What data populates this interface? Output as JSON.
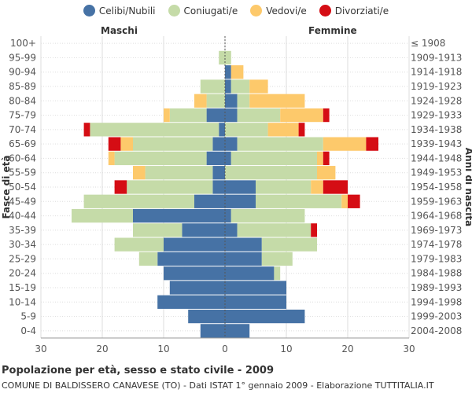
{
  "colors": {
    "celibi": "#4672a5",
    "coniugati": "#c5dba8",
    "vedovi": "#fdc96b",
    "divorziati": "#d50d14",
    "grid": "#dddddd",
    "axis": "#999999",
    "text": "#555555"
  },
  "legend": [
    {
      "label": "Celibi/Nubili",
      "color": "#4672a5"
    },
    {
      "label": "Coniugati/e",
      "color": "#c5dba8"
    },
    {
      "label": "Vedovi/e",
      "color": "#fdc96b"
    },
    {
      "label": "Divorziati/e",
      "color": "#d50d14"
    }
  ],
  "header": {
    "left": "Maschi",
    "right": "Femmine"
  },
  "footer": {
    "title": "Popolazione per età, sesso e stato civile - 2009",
    "subtitle": "COMUNE DI BALDISSERO CANAVESE (TO) - Dati ISTAT 1° gennaio 2009 - Elaborazione TUTTITALIA.IT"
  },
  "chart_data": {
    "type": "bar",
    "orientation": "horizontal-pyramid",
    "ylabel": "Fasce di età",
    "ylabel_right": "Anni di nascita",
    "xlim": [
      -30,
      30
    ],
    "xticks": [
      -30,
      -20,
      -10,
      0,
      10,
      20,
      30
    ],
    "xtick_labels": [
      "30",
      "20",
      "10",
      "0",
      "10",
      "20",
      "30"
    ],
    "categories": [
      "100+",
      "95-99",
      "90-94",
      "85-89",
      "80-84",
      "75-79",
      "70-74",
      "65-69",
      "60-64",
      "55-59",
      "50-54",
      "45-49",
      "40-44",
      "35-39",
      "30-34",
      "25-29",
      "20-24",
      "15-19",
      "10-14",
      "5-9",
      "0-4"
    ],
    "birth_years": [
      "≤ 1908",
      "1909-1913",
      "1914-1918",
      "1919-1923",
      "1924-1928",
      "1929-1933",
      "1934-1938",
      "1939-1943",
      "1944-1948",
      "1949-1953",
      "1954-1958",
      "1959-1963",
      "1964-1968",
      "1969-1973",
      "1974-1978",
      "1979-1983",
      "1984-1988",
      "1989-1993",
      "1994-1998",
      "1999-2003",
      "2004-2008"
    ],
    "series_order": [
      "celibi",
      "coniugati",
      "vedovi",
      "divorziati"
    ],
    "males": {
      "celibi": [
        0,
        0,
        0,
        0,
        0,
        3,
        1,
        2,
        3,
        2,
        2,
        5,
        15,
        7,
        10,
        11,
        10,
        9,
        11,
        6,
        4
      ],
      "coniugati": [
        0,
        1,
        0,
        4,
        3,
        6,
        21,
        13,
        15,
        11,
        14,
        18,
        10,
        8,
        8,
        3,
        0,
        0,
        0,
        0,
        0
      ],
      "vedovi": [
        0,
        0,
        0,
        0,
        2,
        1,
        0,
        2,
        1,
        2,
        0,
        0,
        0,
        0,
        0,
        0,
        0,
        0,
        0,
        0,
        0
      ],
      "divorziati": [
        0,
        0,
        0,
        0,
        0,
        0,
        1,
        2,
        0,
        0,
        2,
        0,
        0,
        0,
        0,
        0,
        0,
        0,
        0,
        0,
        0
      ]
    },
    "females": {
      "nubili": [
        0,
        0,
        1,
        1,
        2,
        2,
        0,
        2,
        1,
        0,
        5,
        5,
        1,
        2,
        6,
        6,
        8,
        10,
        10,
        13,
        4
      ],
      "coniugate": [
        0,
        1,
        0,
        3,
        2,
        7,
        7,
        14,
        14,
        15,
        9,
        14,
        12,
        12,
        9,
        5,
        1,
        0,
        0,
        0,
        0
      ],
      "vedove": [
        0,
        0,
        2,
        3,
        9,
        7,
        5,
        7,
        1,
        3,
        2,
        1,
        0,
        0,
        0,
        0,
        0,
        0,
        0,
        0,
        0
      ],
      "divorziate": [
        0,
        0,
        0,
        0,
        0,
        1,
        1,
        2,
        1,
        0,
        4,
        2,
        0,
        1,
        0,
        0,
        0,
        0,
        0,
        0,
        0
      ]
    }
  }
}
